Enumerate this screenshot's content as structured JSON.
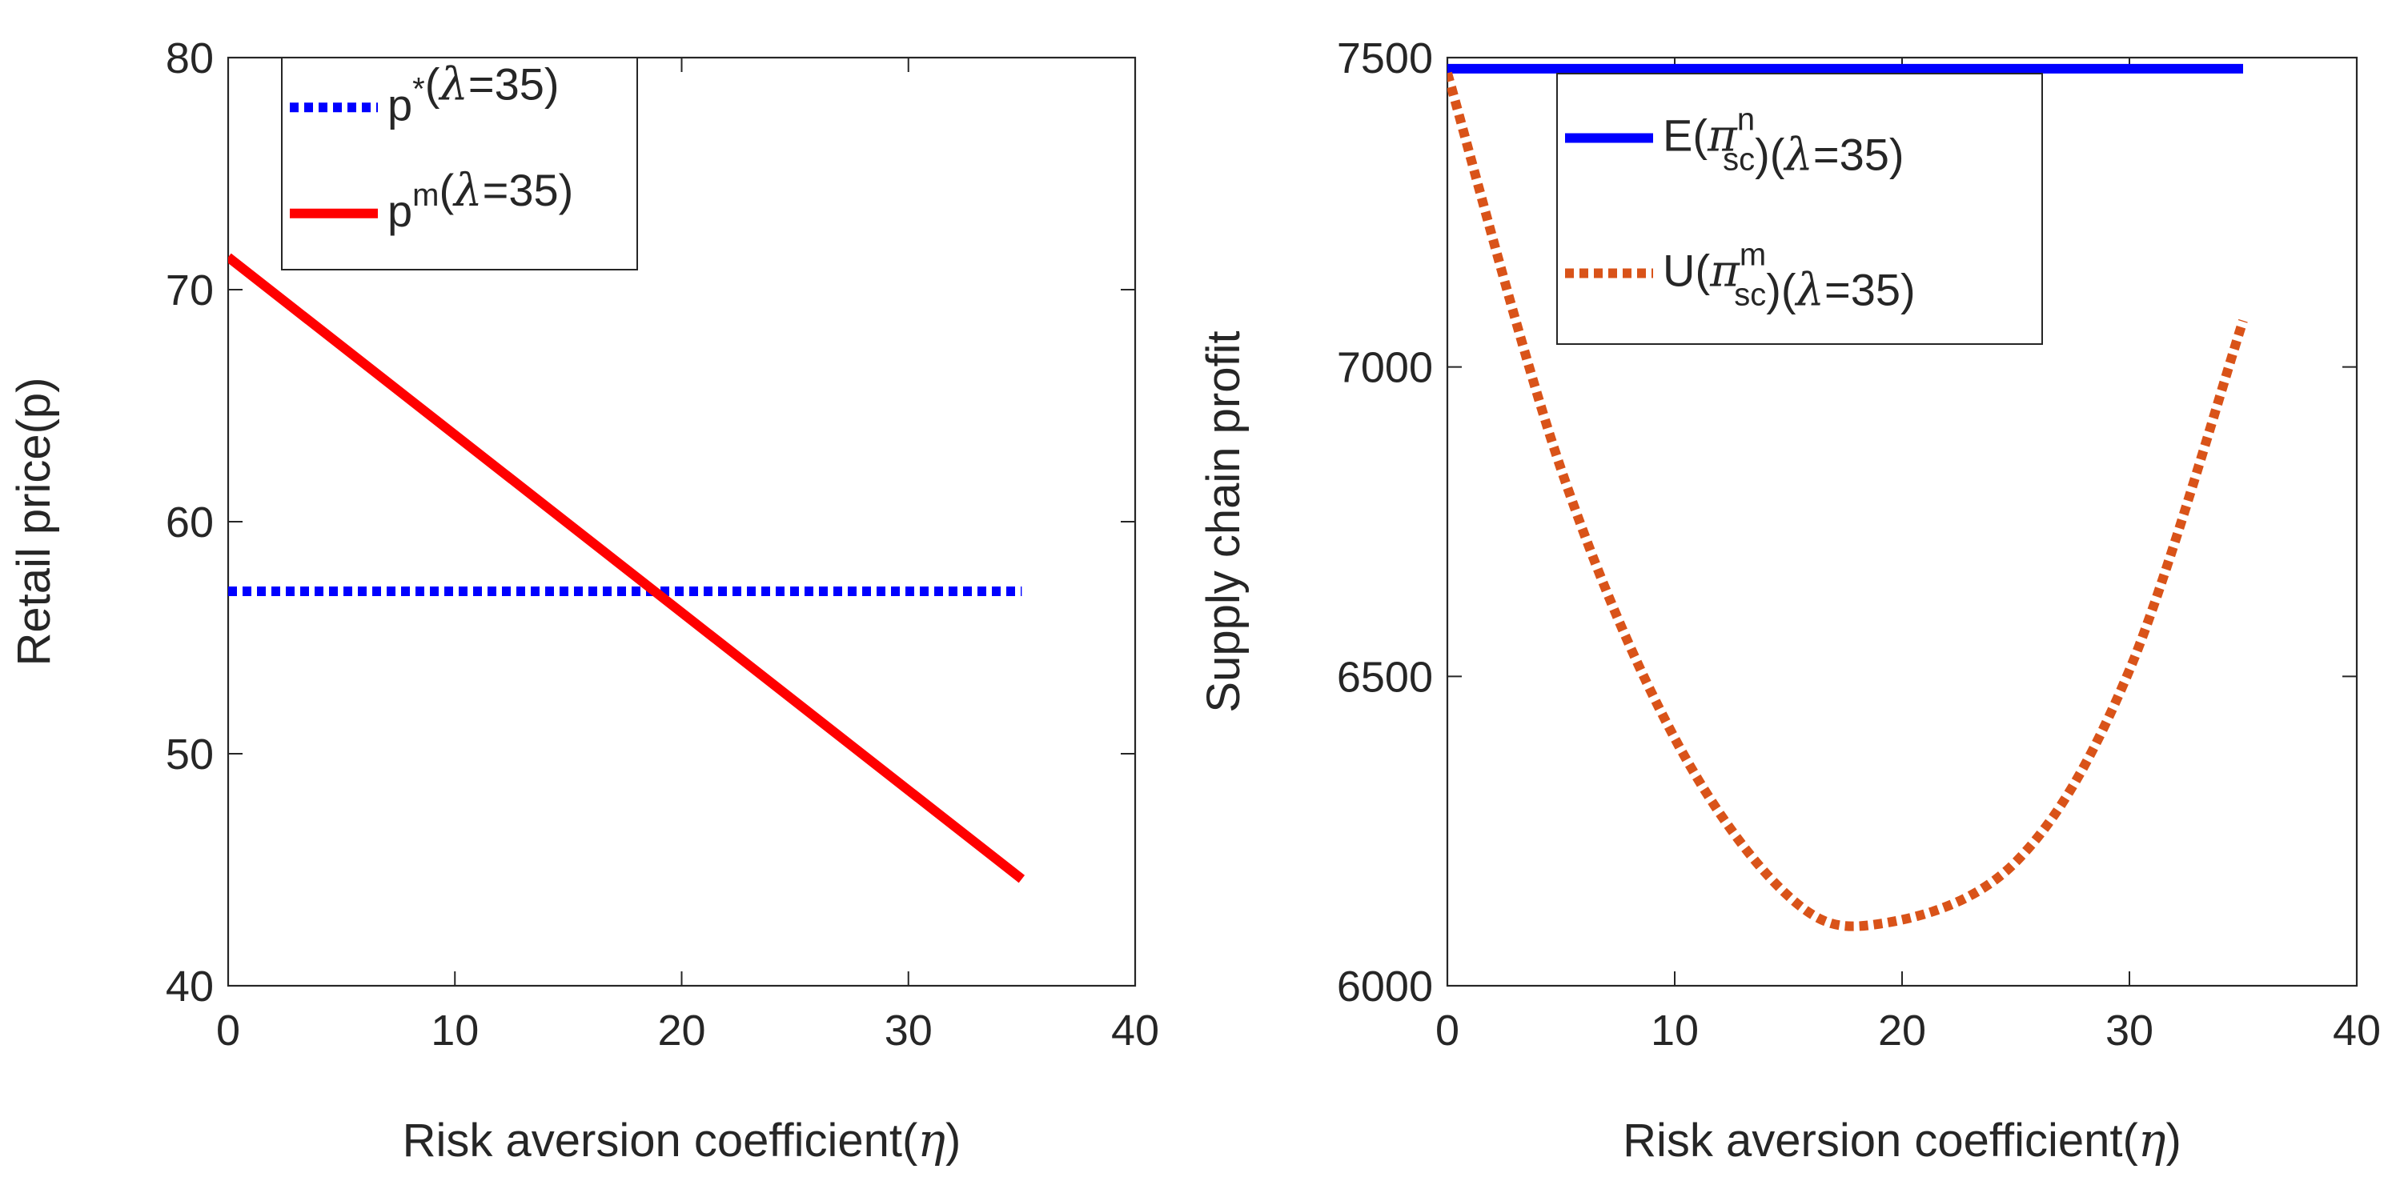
{
  "colors": {
    "blue": "#0000ff",
    "red": "#ff0000",
    "orange": "#d95319",
    "axis": "#262626"
  },
  "chart_data": [
    {
      "type": "line",
      "xlabel": "Risk aversion coefficient(η)",
      "ylabel": "Retail price(p)",
      "xlim": [
        0,
        40
      ],
      "ylim": [
        40,
        80
      ],
      "xticks": [
        "0",
        "10",
        "20",
        "30",
        "40"
      ],
      "yticks": [
        "40",
        "50",
        "60",
        "70",
        "80"
      ],
      "grid": false,
      "legend_position": "top-left",
      "series": [
        {
          "name": "p*(λ=35)",
          "label_base": "p",
          "label_sup": "*",
          "label_sub": "",
          "label_tail": "(λ=35)",
          "style": "dotted",
          "color": "#0000ff",
          "x": [
            0,
            35
          ],
          "y": [
            57,
            57
          ]
        },
        {
          "name": "pm(λ=35)",
          "label_base": "p",
          "label_sup": "m",
          "label_sub": "",
          "label_tail": "(λ=35)",
          "style": "solid",
          "color": "#ff0000",
          "x": [
            0,
            35
          ],
          "y": [
            71.4,
            44.6
          ]
        }
      ]
    },
    {
      "type": "line",
      "xlabel": "Risk aversion coefficient(η)",
      "ylabel": "Supply chain profit",
      "xlim": [
        0,
        40
      ],
      "ylim": [
        6000,
        7500
      ],
      "xticks": [
        "0",
        "10",
        "20",
        "30",
        "40"
      ],
      "yticks": [
        "6000",
        "6500",
        "7000",
        "7500"
      ],
      "grid": false,
      "legend_position": "top-right",
      "series": [
        {
          "name": "E(πnsc)(λ=35)",
          "label_base": "E(π",
          "label_sup": "n",
          "label_sub": "sc",
          "label_tail": ")(λ=35)",
          "style": "solid",
          "color": "#0000ff",
          "x": [
            0,
            35
          ],
          "y": [
            7482,
            7482
          ]
        },
        {
          "name": "U(πmsc)(λ=35)",
          "label_base": "U(π",
          "label_sup": "m",
          "label_sub": "sc",
          "label_tail": ")(λ=35)",
          "style": "dotted",
          "color": "#d95319",
          "x": [
            0,
            5,
            10,
            15,
            19,
            25,
            30,
            35
          ],
          "y": [
            7475,
            6835,
            6400,
            6145,
            6100,
            6200,
            6510,
            7075
          ]
        }
      ]
    }
  ]
}
